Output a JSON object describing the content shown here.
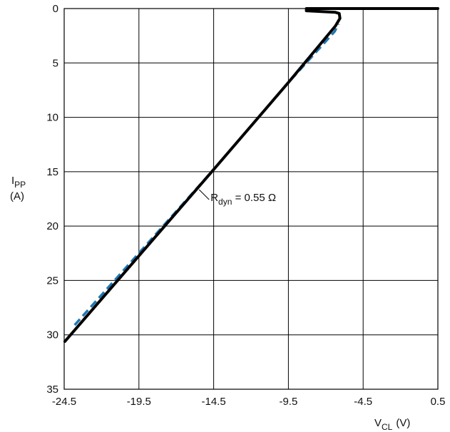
{
  "chart_data": {
    "type": "line",
    "title": "",
    "xlabel": {
      "main": "V",
      "sub": "CL",
      "unit": "(V)"
    },
    "ylabel": {
      "main": "I",
      "sub": "PP",
      "unit": "(A)"
    },
    "xlim": [
      -24.5,
      0.5
    ],
    "ylim": [
      0,
      35
    ],
    "y_inverted": true,
    "grid": true,
    "x_ticks": [
      "-24.5",
      "-19.5",
      "-14.5",
      "-9.5",
      "-4.5",
      "0.5"
    ],
    "y_ticks": [
      "0",
      "5",
      "10",
      "15",
      "20",
      "25",
      "30",
      "35"
    ],
    "x_tick_values": [
      -24.5,
      -19.5,
      -14.5,
      -9.5,
      -4.5,
      0.5
    ],
    "y_tick_values": [
      0,
      5,
      10,
      15,
      20,
      25,
      30,
      35
    ],
    "series": [
      {
        "style": "solid",
        "color": "#000000",
        "x": [
          -24.45,
          -14.5,
          -9.5,
          -6.35,
          -6.05,
          -6.1,
          -6.35,
          -8.3,
          -8.3,
          0.5
        ],
        "y": [
          30.6,
          14.8,
          6.8,
          1.6,
          0.9,
          0.45,
          0.35,
          0.2,
          0.0,
          0.0
        ]
      },
      {
        "style": "dashed",
        "color": "#1f77b4",
        "x": [
          -23.8,
          -14.5,
          -9.5,
          -6.4,
          -6.15
        ],
        "y": [
          29.1,
          14.8,
          6.8,
          2.1,
          1.4
        ]
      }
    ],
    "annotation": {
      "main": "R",
      "sub": "dyn",
      "rest": " = 0.55 Ω",
      "point": {
        "x": -14.9,
        "y": 17.5
      }
    }
  }
}
